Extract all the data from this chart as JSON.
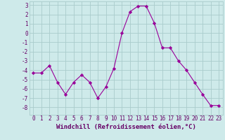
{
  "x": [
    0,
    1,
    2,
    3,
    4,
    5,
    6,
    7,
    8,
    9,
    10,
    11,
    12,
    13,
    14,
    15,
    16,
    17,
    18,
    19,
    20,
    21,
    22,
    23
  ],
  "y": [
    -4.3,
    -4.3,
    -3.5,
    -5.3,
    -6.6,
    -5.3,
    -4.5,
    -5.3,
    -7.0,
    -5.8,
    -3.8,
    0.0,
    2.3,
    2.9,
    2.9,
    1.1,
    -1.6,
    -1.6,
    -3.0,
    -4.0,
    -5.3,
    -6.6,
    -7.8,
    -7.8
  ],
  "xlabel": "Windchill (Refroidissement éolien,°C)",
  "xlim": [
    -0.5,
    23.5
  ],
  "ylim": [
    -8.8,
    3.4
  ],
  "yticks": [
    3,
    2,
    1,
    0,
    -1,
    -2,
    -3,
    -4,
    -5,
    -6,
    -7,
    -8
  ],
  "xticks": [
    0,
    1,
    2,
    3,
    4,
    5,
    6,
    7,
    8,
    9,
    10,
    11,
    12,
    13,
    14,
    15,
    16,
    17,
    18,
    19,
    20,
    21,
    22,
    23
  ],
  "line_color": "#990099",
  "marker": "D",
  "marker_size": 2.2,
  "bg_color": "#ceeaea",
  "grid_color": "#aacccc",
  "label_color": "#660066",
  "tick_label_fontsize": 5.5,
  "xlabel_fontsize": 6.5
}
